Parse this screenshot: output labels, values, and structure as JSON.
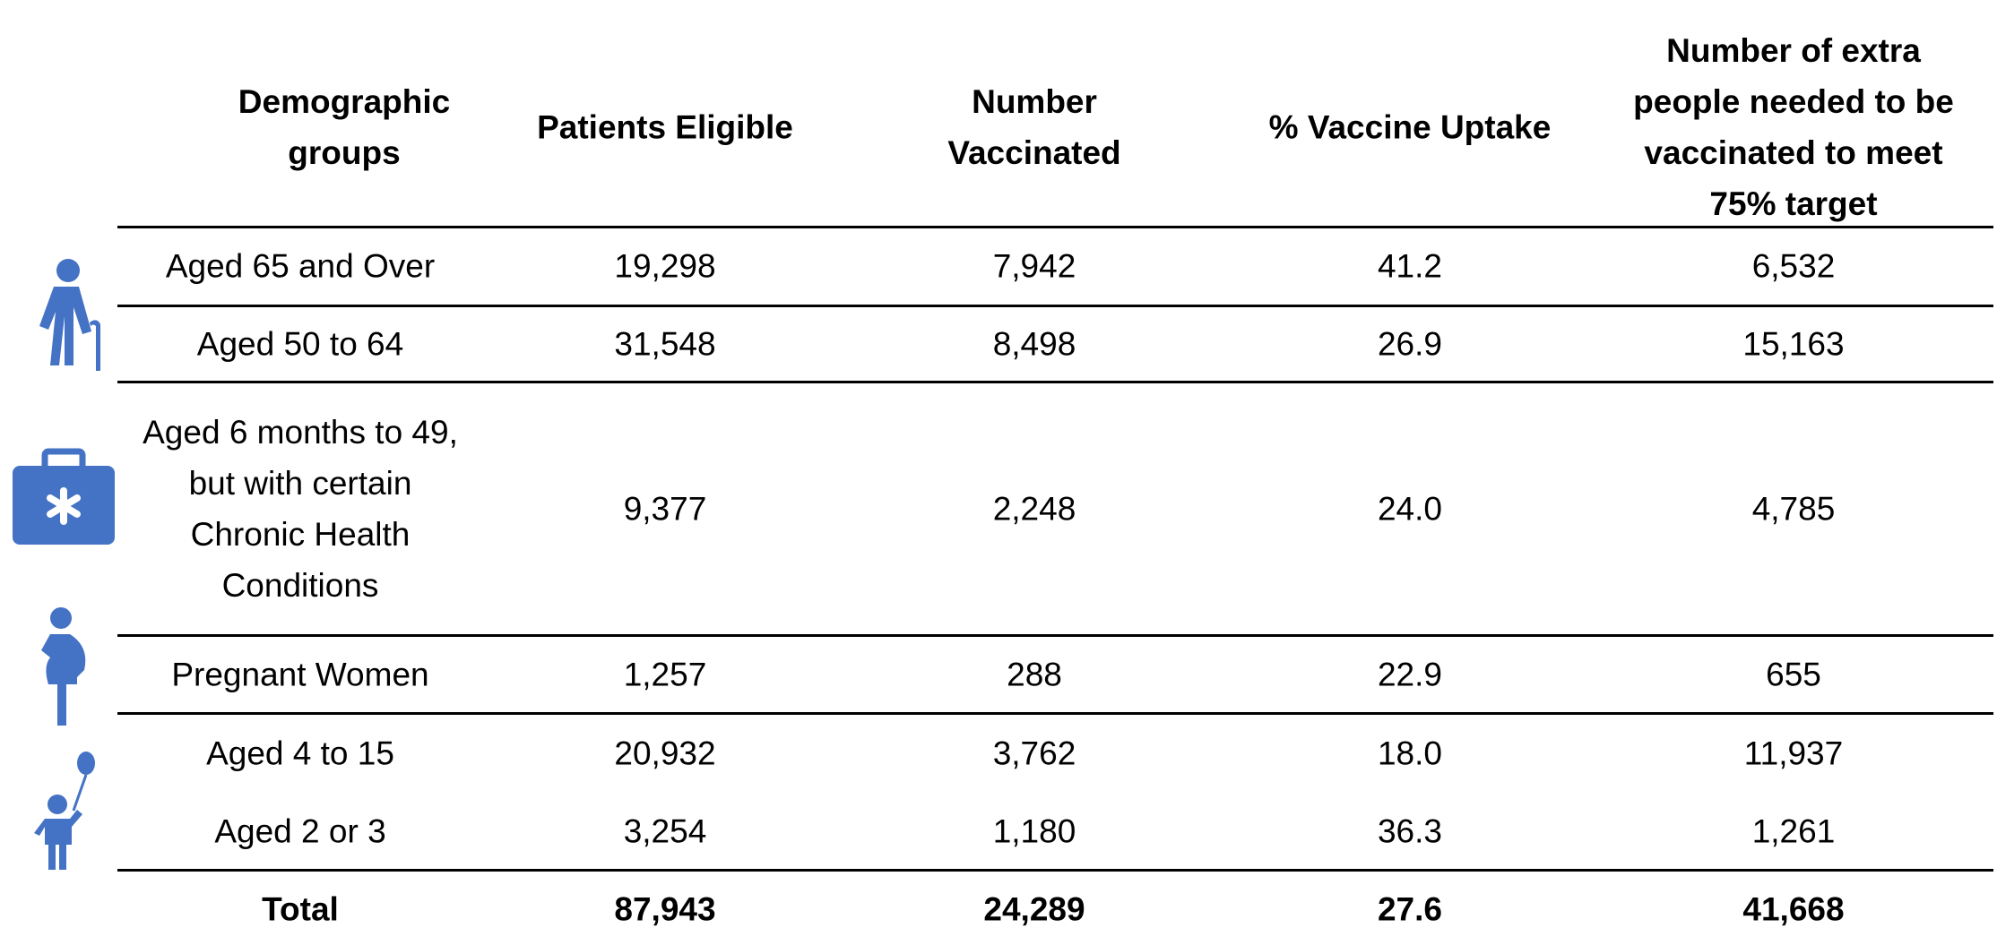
{
  "table": {
    "header": [
      "Demographic groups",
      "Patients Eligible",
      "Number Vaccinated",
      "% Vaccine Uptake",
      "Number of extra people needed to be vaccinated to meet 75% target"
    ],
    "rows": [
      [
        "Aged 65 and Over",
        "19,298",
        "7,942",
        "41.2",
        "6,532"
      ],
      [
        "Aged 50 to 64",
        "31,548",
        "8,498",
        "26.9",
        "15,163"
      ],
      [
        "Aged 6 months to 49, but with certain Chronic Health Conditions",
        "9,377",
        "2,248",
        "24.0",
        "4,785"
      ],
      [
        "Pregnant Women",
        "1,257",
        "288",
        "22.9",
        "655"
      ],
      [
        "Aged 4 to 15",
        "20,932",
        "3,762",
        "18.0",
        "11,937"
      ],
      [
        "Aged 2 or 3",
        "3,254",
        "1,180",
        "36.3",
        "1,261"
      ]
    ],
    "total": [
      "Total",
      "87,943",
      "24,289",
      "27.6",
      "41,668"
    ]
  }
}
